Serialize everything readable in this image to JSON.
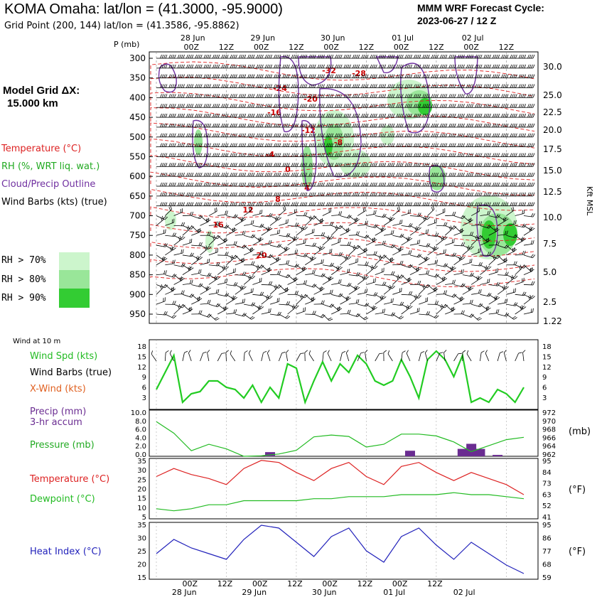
{
  "header": {
    "title": "KOMA Omaha:  lat/lon = (41.3000, -95.9000)",
    "grid_point": "Grid Point (200, 144) lat/lon = (41.3586, -95.8862)",
    "cycle_line1": "MMM WRF Forecast Cycle:",
    "cycle_line2": "2023-06-27 / 12  Z"
  },
  "left_panel": {
    "model_grid_line1": "Model Grid ΔX:",
    "model_grid_line2": "15.000 km",
    "legend_temperature": "Temperature (°C)",
    "legend_rh": "RH (%, WRT liq. wat.)",
    "legend_cloud": "Cloud/Precip Outline",
    "legend_wind": "Wind Barbs (kts) (true)",
    "rh_70": "RH > 70%",
    "rh_80": "RH > 80%",
    "rh_90": "RH > 90%"
  },
  "colors": {
    "temperature": "#dd2222",
    "rh": "#22bb22",
    "cloud": "#7030a0",
    "wind_spd": "#22cc22",
    "pressure": "#22bb22",
    "heat_index": "#2222bb",
    "xwind": "#e06020",
    "precip": "#6a2c91",
    "rh70_fill": "#ccf5cc",
    "rh80_fill": "#99e699",
    "rh90_fill": "#33cc33"
  },
  "upper_axes": {
    "p_label": "P  (mb)",
    "date_labels": [
      "28 Jun",
      "29 Jun",
      "30 Jun",
      "01 Jul",
      "02 Jul"
    ],
    "hour_labels": [
      "00Z",
      "12Z",
      "00Z",
      "12Z",
      "00Z",
      "12Z",
      "00Z",
      "12Z",
      "00Z",
      "12Z"
    ],
    "pressure_ticks": [
      "300",
      "350",
      "400",
      "450",
      "500",
      "550",
      "600",
      "650",
      "700",
      "750",
      "800",
      "850",
      "900",
      "950"
    ],
    "height_ticks": [
      "30.0",
      "25.0",
      "22.5",
      "20.0",
      "17.5",
      "15.0",
      "12.5",
      "10.0",
      "7.5",
      "5.0",
      "2.5",
      "1.22"
    ],
    "height_axis_label": "Kft MSL",
    "temp_contour_labels": [
      "-32",
      "-28",
      "-24",
      "-20",
      "-16",
      "-12",
      "-8",
      "-4",
      "0",
      "4",
      "8",
      "12",
      "16",
      "20"
    ]
  },
  "lower_panel": {
    "wind_title": "Wind at 10 m",
    "wind_spd_label": "Wind Spd (kts)",
    "wind_barbs_label": "Wind Barbs (true)",
    "xwind_label": "X-Wind (kts)",
    "precip_label_1": "Precip (mm)",
    "precip_label_2": "3-hr accum",
    "pressure_label": "Pressure (mb)",
    "temp_label": "Temperature (°C)",
    "dewpoint_label": "Dewpoint (°C)",
    "heat_index_label": "Heat Index (°C)",
    "unit_mb": "(mb)",
    "unit_f1": "(°F)",
    "unit_f2": "(°F)",
    "wind_ticks": [
      "18",
      "15",
      "12",
      "9",
      "6",
      "3"
    ],
    "precip_ticks": [
      "10.0",
      "8.0",
      "6.0",
      "4.0",
      "2.0",
      "0.0"
    ],
    "pressure_ticks": [
      "972",
      "970",
      "968",
      "966",
      "964",
      "962"
    ],
    "temp_ticks": [
      "35",
      "30",
      "25",
      "20",
      "15",
      "10",
      "5"
    ],
    "temp_f_ticks": [
      "95",
      "84",
      "73",
      "63",
      "52",
      "41"
    ],
    "hi_ticks": [
      "35",
      "30",
      "25",
      "20",
      "15"
    ],
    "hi_f_ticks": [
      "95",
      "86",
      "77",
      "68",
      "59"
    ],
    "bottom_hours": [
      "00Z",
      "12Z",
      "00Z",
      "12Z",
      "00Z",
      "12Z",
      "00Z",
      "12Z"
    ],
    "bottom_dates": [
      "28 Jun",
      "29 Jun",
      "30 Jun",
      "01 Jul",
      "02 Jul"
    ]
  },
  "chart_data": [
    {
      "type": "line",
      "title": "Wind at 10 m",
      "ylabel": "Wind Spd (kts)",
      "ylim": [
        3,
        18
      ],
      "x": [
        0,
        3,
        6,
        9,
        12,
        15,
        18,
        21,
        24,
        27,
        30,
        33,
        36,
        39,
        42,
        45,
        48,
        51,
        54,
        57,
        60,
        63,
        66,
        69,
        72,
        75,
        78,
        81,
        84,
        87,
        90,
        93,
        96,
        99,
        102,
        105,
        108,
        111,
        114,
        117,
        120,
        123,
        126
      ],
      "series": [
        {
          "name": "Wind Spd (kts)",
          "values": [
            7,
            11,
            15,
            4,
            6,
            6.5,
            9,
            9,
            7.5,
            7,
            5,
            8,
            4,
            7.5,
            5,
            13,
            12,
            4,
            9,
            13.5,
            9,
            13,
            11,
            15,
            13,
            9,
            8,
            9,
            14,
            10,
            5,
            14,
            16,
            14,
            10,
            15,
            4,
            5,
            4,
            7,
            6,
            4,
            7.5
          ]
        }
      ]
    },
    {
      "type": "bar",
      "ylabel": "Precip (mm) 3-hr accum",
      "ylim": [
        0,
        10
      ],
      "x": [
        39,
        87,
        105,
        108,
        111,
        117
      ],
      "series": [
        {
          "name": "Precip (mm)",
          "values": [
            0.9,
            1.2,
            1.6,
            2.7,
            1.6,
            0.3
          ]
        }
      ]
    },
    {
      "type": "line",
      "ylabel": "Pressure (mb)",
      "ylim": [
        962,
        972
      ],
      "x": [
        0,
        6,
        12,
        18,
        24,
        30,
        36,
        42,
        48,
        54,
        60,
        66,
        72,
        78,
        84,
        90,
        96,
        102,
        108,
        114,
        120,
        126
      ],
      "series": [
        {
          "name": "Pressure (mb)",
          "values": [
            969.5,
            967,
            963.2,
            964.6,
            963.6,
            962,
            962.1,
            962.5,
            963.3,
            966.2,
            966.6,
            966.3,
            964,
            964.6,
            966.8,
            966.8,
            966.4,
            965.1,
            963,
            964.3,
            965.6,
            966.1
          ]
        }
      ]
    },
    {
      "type": "line",
      "ylim": [
        5,
        35
      ],
      "x": [
        0,
        6,
        12,
        18,
        24,
        30,
        36,
        42,
        48,
        54,
        60,
        66,
        72,
        78,
        84,
        90,
        96,
        102,
        108,
        114,
        120,
        126
      ],
      "series": [
        {
          "name": "Temperature (°C)",
          "values": [
            26,
            30,
            27,
            25,
            22,
            30,
            34,
            33,
            28,
            24,
            30,
            33,
            26,
            22,
            31,
            33,
            28,
            24,
            28,
            25,
            22,
            17
          ]
        },
        {
          "name": "Dewpoint (°C)",
          "values": [
            10,
            9,
            10,
            12,
            12,
            14,
            14,
            14,
            14,
            15,
            15,
            16,
            16,
            16,
            17,
            17,
            17,
            18,
            17,
            17,
            16,
            15
          ]
        }
      ]
    },
    {
      "type": "line",
      "ylim": [
        15,
        35
      ],
      "x": [
        0,
        6,
        12,
        18,
        24,
        30,
        36,
        42,
        48,
        54,
        60,
        66,
        72,
        78,
        84,
        90,
        96,
        102,
        108,
        114,
        120,
        126
      ],
      "series": [
        {
          "name": "Heat Index (°C)",
          "values": [
            24,
            29,
            26,
            24,
            22,
            29,
            34,
            33,
            28,
            23,
            30,
            33,
            25,
            21,
            30,
            33,
            27,
            22,
            28,
            24,
            20,
            17
          ]
        }
      ]
    }
  ]
}
